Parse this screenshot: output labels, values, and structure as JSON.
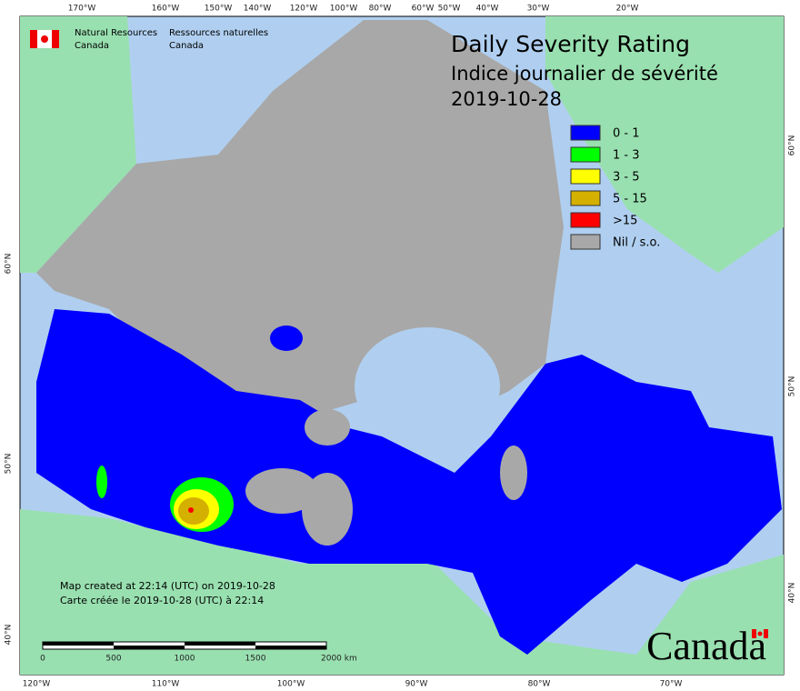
{
  "header": {
    "title": "Daily Severity Rating",
    "subtitle": "Indice journalier de sévérité",
    "date": "2019-10-28"
  },
  "agency": {
    "english": [
      "Natural Resources",
      "Canada"
    ],
    "french": [
      "Ressources naturelles",
      "Canada"
    ]
  },
  "legend": [
    {
      "label": "0 - 1",
      "color": "#0000ff"
    },
    {
      "label": "1 - 3",
      "color": "#00ff00"
    },
    {
      "label": "3 - 5",
      "color": "#ffff00"
    },
    {
      "label": "5 - 15",
      "color": "#d4b000"
    },
    {
      "label": ">15",
      "color": "#ff0000"
    },
    {
      "label": "Nil / s.o.",
      "color": "#a8a8a8"
    }
  ],
  "graticule": {
    "top": [
      "170°W",
      "160°W",
      "150°W",
      "140°W",
      "120°W",
      "100°W",
      "80°W",
      "60°W",
      "50°W",
      "40°W",
      "30°W",
      "20°W"
    ],
    "bottom": [
      "120°W",
      "110°W",
      "100°W",
      "90°W",
      "80°W",
      "70°W"
    ],
    "left": [
      "60°N",
      "50°N",
      "40°N"
    ],
    "right": [
      "60°N",
      "50°N",
      "40°N"
    ]
  },
  "notes": [
    "Map created at 22:14 (UTC) on 2019-10-28",
    "Carte créée le 2019-10-28 (UTC) à 22:14"
  ],
  "scale_bar": [
    "0",
    "500",
    "1000",
    "1500",
    "2000 km"
  ],
  "wordmark": "Canada"
}
